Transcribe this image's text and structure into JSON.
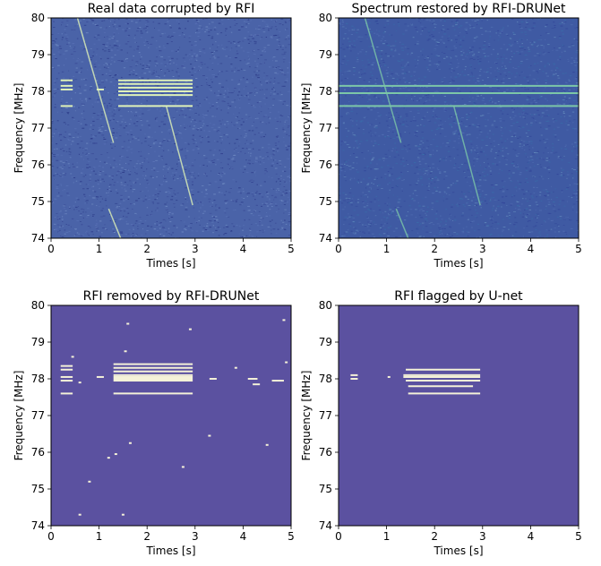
{
  "chart_data": [
    {
      "type": "heatmap",
      "title": "Real data corrupted by RFI",
      "xlabel": "Times [s]",
      "ylabel": "Frequency [MHz]",
      "xlim": [
        0,
        5
      ],
      "ylim": [
        74,
        80
      ],
      "xticks": [
        "0",
        "1",
        "2",
        "3",
        "4",
        "5"
      ],
      "yticks": [
        "74",
        "75",
        "76",
        "77",
        "78",
        "79",
        "80"
      ],
      "background_color": "#4a63a8",
      "noise_colors": [
        "#3b4d98",
        "#5770b4",
        "#6a85bf",
        "#2f3f8c"
      ],
      "rfi_color": "#dff2b8",
      "horizontal_rfi": [
        {
          "t0": 0.2,
          "t1": 0.45,
          "f": 78.3
        },
        {
          "t0": 0.2,
          "t1": 0.45,
          "f": 78.15
        },
        {
          "t0": 0.2,
          "t1": 0.45,
          "f": 78.05
        },
        {
          "t0": 0.2,
          "t1": 0.45,
          "f": 77.6
        },
        {
          "t0": 1.4,
          "t1": 2.95,
          "f": 78.3
        },
        {
          "t0": 1.4,
          "t1": 2.95,
          "f": 78.2
        },
        {
          "t0": 1.4,
          "t1": 2.95,
          "f": 78.1
        },
        {
          "t0": 1.4,
          "t1": 2.95,
          "f": 78.0
        },
        {
          "t0": 1.4,
          "t1": 2.95,
          "f": 77.9
        },
        {
          "t0": 1.4,
          "t1": 2.95,
          "f": 77.6
        },
        {
          "t0": 0.95,
          "t1": 1.1,
          "f": 78.05
        }
      ],
      "diagonal_rfi": [
        {
          "t0": 0.55,
          "f0": 80.0,
          "t1": 1.3,
          "f1": 76.6
        },
        {
          "t0": 2.4,
          "f0": 77.6,
          "t1": 2.95,
          "f1": 74.9
        },
        {
          "t0": 1.2,
          "f0": 74.8,
          "t1": 1.45,
          "f1": 74.0
        }
      ]
    },
    {
      "type": "heatmap",
      "title": "Spectrum restored by RFI-DRUNet",
      "xlabel": "Times [s]",
      "ylabel": "Frequency [MHz]",
      "xlim": [
        0,
        5
      ],
      "ylim": [
        74,
        80
      ],
      "xticks": [
        "0",
        "1",
        "2",
        "3",
        "4",
        "5"
      ],
      "yticks": [
        "74",
        "75",
        "76",
        "77",
        "78",
        "79",
        "80"
      ],
      "background_color": "#3f5aa3",
      "noise_colors": [
        "#34499a",
        "#4f6cb0",
        "#5d82b8",
        "#3a6aa8"
      ],
      "rfi_color": "#7cc6a8",
      "horizontal_rfi": [
        {
          "t0": 0.0,
          "t1": 5.0,
          "f": 78.15
        },
        {
          "t0": 0.0,
          "t1": 5.0,
          "f": 77.95
        },
        {
          "t0": 0.0,
          "t1": 5.0,
          "f": 77.6
        }
      ],
      "diagonal_rfi": [
        {
          "t0": 0.55,
          "f0": 80.0,
          "t1": 1.3,
          "f1": 76.6
        },
        {
          "t0": 2.4,
          "f0": 77.6,
          "t1": 2.95,
          "f1": 74.9
        },
        {
          "t0": 1.2,
          "f0": 74.8,
          "t1": 1.45,
          "f1": 74.0
        }
      ]
    },
    {
      "type": "heatmap",
      "title": "RFI removed by RFI-DRUNet",
      "xlabel": "Times [s]",
      "ylabel": "Frequency [MHz]",
      "xlim": [
        0,
        5
      ],
      "ylim": [
        74,
        80
      ],
      "xticks": [
        "0",
        "1",
        "2",
        "3",
        "4",
        "5"
      ],
      "yticks": [
        "74",
        "75",
        "76",
        "77",
        "78",
        "79",
        "80"
      ],
      "background_color": "#5b51a0",
      "rfi_color": "#f4f1d8",
      "horizontal_rfi": [
        {
          "t0": 0.2,
          "t1": 0.45,
          "f": 78.35
        },
        {
          "t0": 0.2,
          "t1": 0.45,
          "f": 78.25
        },
        {
          "t0": 0.2,
          "t1": 0.45,
          "f": 78.05
        },
        {
          "t0": 0.2,
          "t1": 0.45,
          "f": 77.95
        },
        {
          "t0": 0.2,
          "t1": 0.45,
          "f": 77.6
        },
        {
          "t0": 1.3,
          "t1": 2.95,
          "f": 78.4
        },
        {
          "t0": 1.3,
          "t1": 2.95,
          "f": 78.3
        },
        {
          "t0": 1.3,
          "t1": 2.95,
          "f": 78.2
        },
        {
          "t0": 1.3,
          "t1": 2.95,
          "f": 78.1
        },
        {
          "t0": 1.3,
          "t1": 2.95,
          "f": 78.05
        },
        {
          "t0": 1.3,
          "t1": 2.95,
          "f": 78.0
        },
        {
          "t0": 1.3,
          "t1": 2.95,
          "f": 77.95
        },
        {
          "t0": 1.3,
          "t1": 2.95,
          "f": 77.6
        },
        {
          "t0": 0.95,
          "t1": 1.1,
          "f": 78.05
        },
        {
          "t0": 3.3,
          "t1": 3.45,
          "f": 78.0
        },
        {
          "t0": 4.1,
          "t1": 4.3,
          "f": 78.0
        },
        {
          "t0": 4.6,
          "t1": 4.85,
          "f": 77.95
        },
        {
          "t0": 4.2,
          "t1": 4.35,
          "f": 77.85
        }
      ],
      "specks": [
        {
          "t": 0.45,
          "f": 78.6
        },
        {
          "t": 1.55,
          "f": 78.75
        },
        {
          "t": 1.6,
          "f": 79.5
        },
        {
          "t": 2.9,
          "f": 79.35
        },
        {
          "t": 4.85,
          "f": 79.6
        },
        {
          "t": 0.8,
          "f": 75.2
        },
        {
          "t": 1.65,
          "f": 76.25
        },
        {
          "t": 1.2,
          "f": 75.85
        },
        {
          "t": 2.75,
          "f": 75.6
        },
        {
          "t": 0.6,
          "f": 74.3
        },
        {
          "t": 1.5,
          "f": 74.3
        },
        {
          "t": 4.5,
          "f": 76.2
        },
        {
          "t": 3.3,
          "f": 76.45
        },
        {
          "t": 1.35,
          "f": 75.95
        },
        {
          "t": 3.85,
          "f": 78.3
        },
        {
          "t": 0.6,
          "f": 77.9
        },
        {
          "t": 4.9,
          "f": 78.45
        }
      ]
    },
    {
      "type": "heatmap",
      "title": "RFI flagged by U-net",
      "xlabel": "Times [s]",
      "ylabel": "Frequency [MHz]",
      "xlim": [
        0,
        5
      ],
      "ylim": [
        74,
        80
      ],
      "xticks": [
        "0",
        "1",
        "2",
        "3",
        "4",
        "5"
      ],
      "yticks": [
        "74",
        "75",
        "76",
        "77",
        "78",
        "79",
        "80"
      ],
      "background_color": "#5b51a0",
      "rfi_color": "#f4f1d8",
      "horizontal_rfi": [
        {
          "t0": 0.25,
          "t1": 0.4,
          "f": 78.1
        },
        {
          "t0": 0.25,
          "t1": 0.4,
          "f": 78.0
        },
        {
          "t0": 1.4,
          "t1": 2.95,
          "f": 78.25
        },
        {
          "t0": 1.35,
          "t1": 2.95,
          "f": 78.1
        },
        {
          "t0": 1.35,
          "t1": 2.95,
          "f": 78.05
        },
        {
          "t0": 1.4,
          "t1": 2.95,
          "f": 77.95
        },
        {
          "t0": 1.45,
          "t1": 2.8,
          "f": 77.8
        },
        {
          "t0": 1.45,
          "t1": 2.95,
          "f": 77.6
        }
      ],
      "specks": [
        {
          "t": 1.05,
          "f": 78.05
        }
      ]
    }
  ]
}
